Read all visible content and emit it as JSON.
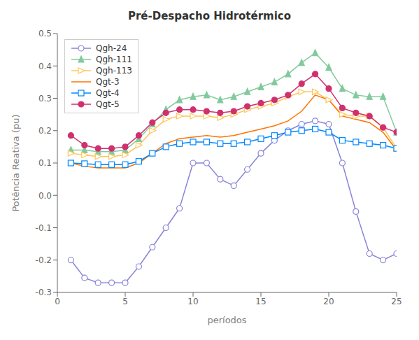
{
  "chart_data": {
    "type": "line",
    "title": "Pré-Despacho Hidrotérmico",
    "xlabel": "períodos",
    "ylabel": "Potência Reativa (pu)",
    "x": [
      1,
      2,
      3,
      4,
      5,
      6,
      7,
      8,
      9,
      10,
      11,
      12,
      13,
      14,
      15,
      16,
      17,
      18,
      19,
      20,
      21,
      22,
      23,
      24,
      25
    ],
    "series": [
      {
        "name": "Qgh-24",
        "color": "#8884d8",
        "marker": "open-circle",
        "values": [
          -0.2,
          -0.255,
          -0.27,
          -0.27,
          -0.27,
          -0.22,
          -0.16,
          -0.1,
          -0.04,
          0.1,
          0.1,
          0.05,
          0.03,
          0.08,
          0.13,
          0.17,
          0.2,
          0.22,
          0.23,
          0.22,
          0.1,
          -0.05,
          -0.18,
          -0.2,
          -0.18
        ]
      },
      {
        "name": "Qgh-111",
        "color": "#82ca9d",
        "marker": "filled-triangle",
        "values": [
          0.14,
          0.14,
          0.135,
          0.135,
          0.14,
          0.175,
          0.22,
          0.265,
          0.295,
          0.305,
          0.31,
          0.295,
          0.305,
          0.32,
          0.335,
          0.35,
          0.375,
          0.41,
          0.44,
          0.395,
          0.33,
          0.31,
          0.305,
          0.305,
          0.195
        ]
      },
      {
        "name": "Qgh-113",
        "color": "#ffc658",
        "marker": "open-triangle-right",
        "values": [
          0.13,
          0.125,
          0.12,
          0.12,
          0.125,
          0.155,
          0.2,
          0.235,
          0.245,
          0.245,
          0.245,
          0.24,
          0.25,
          0.265,
          0.275,
          0.285,
          0.305,
          0.32,
          0.32,
          0.295,
          0.25,
          0.245,
          0.245,
          0.21,
          0.145
        ]
      },
      {
        "name": "Qgt-3",
        "color": "#ff7300",
        "marker": "none",
        "values": [
          0.1,
          0.09,
          0.085,
          0.085,
          0.085,
          0.1,
          0.13,
          0.16,
          0.175,
          0.18,
          0.185,
          0.18,
          0.185,
          0.195,
          0.205,
          0.215,
          0.23,
          0.26,
          0.31,
          0.295,
          0.245,
          0.235,
          0.225,
          0.195,
          0.14
        ]
      },
      {
        "name": "Qgt-4",
        "color": "#0088fe",
        "marker": "open-square",
        "values": [
          0.1,
          0.098,
          0.095,
          0.095,
          0.095,
          0.105,
          0.13,
          0.15,
          0.16,
          0.165,
          0.165,
          0.16,
          0.16,
          0.165,
          0.175,
          0.185,
          0.195,
          0.2,
          0.205,
          0.195,
          0.17,
          0.165,
          0.16,
          0.155,
          0.145
        ]
      },
      {
        "name": "Qgt-5",
        "color": "#d0306e",
        "marker": "filled-circle",
        "values": [
          0.185,
          0.155,
          0.145,
          0.145,
          0.15,
          0.185,
          0.225,
          0.255,
          0.265,
          0.265,
          0.26,
          0.255,
          0.26,
          0.275,
          0.285,
          0.295,
          0.31,
          0.345,
          0.375,
          0.33,
          0.27,
          0.255,
          0.245,
          0.21,
          0.195
        ]
      }
    ],
    "xlim": [
      0,
      25
    ],
    "ylim": [
      -0.3,
      0.5
    ],
    "xticks": [
      0,
      5,
      10,
      15,
      20,
      25
    ],
    "yticks": [
      -0.3,
      -0.2,
      -0.1,
      {
        "value": 0,
        "label": "0.0"
      },
      0.1,
      0.2,
      0.3,
      0.4,
      0.5
    ],
    "grid": false,
    "legend": "upper left"
  }
}
